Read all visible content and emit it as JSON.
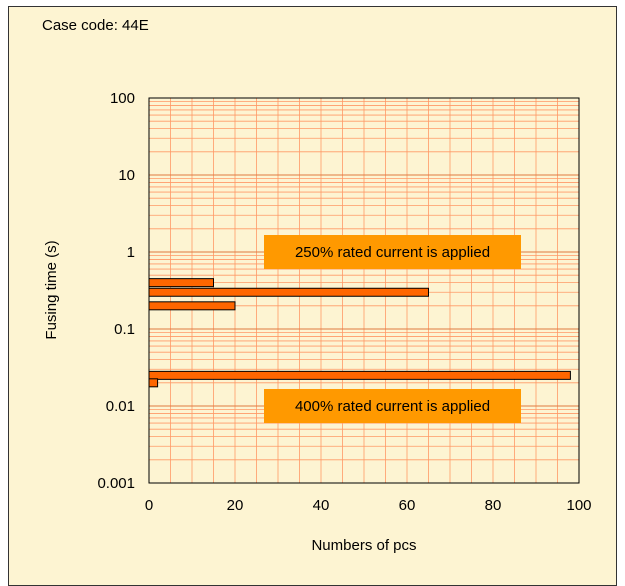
{
  "case_label": "Case code: 44E",
  "chart_data": {
    "type": "bar",
    "orientation": "horizontal",
    "xlabel": "Numbers of pcs",
    "ylabel": "Fusing time (s)",
    "xlim": [
      0,
      100
    ],
    "ylim": [
      0.001,
      100
    ],
    "y_scale": "log",
    "grid": true,
    "x_ticks": [
      "0",
      "20",
      "40",
      "60",
      "80",
      "100"
    ],
    "y_ticks": [
      "0.001",
      "0.01",
      "0.1",
      "1",
      "10",
      "100"
    ],
    "bars": [
      {
        "y": 0.4,
        "value": 15
      },
      {
        "y": 0.3,
        "value": 65
      },
      {
        "y": 0.2,
        "value": 20
      },
      {
        "y": 0.025,
        "value": 98
      },
      {
        "y": 0.02,
        "value": 2
      }
    ],
    "annotations": [
      {
        "text": "250% rated current is applied",
        "y": 1
      },
      {
        "text": "400% rated current is applied",
        "y": 0.01
      }
    ],
    "colors": {
      "bar_fill": "#ff6600",
      "bar_stroke": "#000000",
      "grid": "#ff9966",
      "annotation_bg": "#ff9900",
      "background": "#fdf4d2"
    }
  }
}
